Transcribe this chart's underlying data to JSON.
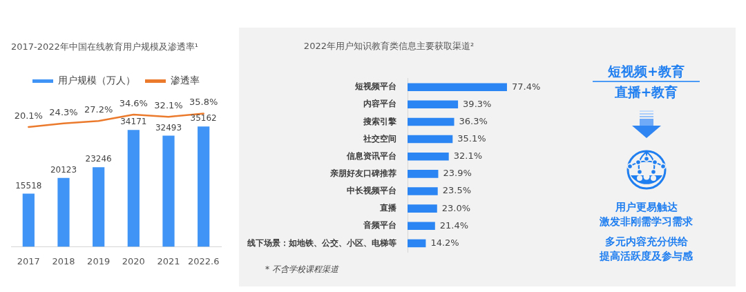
{
  "chart_data": [
    {
      "type": "bar",
      "title": "2017-2022年中国在线教育用户规模及渗透率¹",
      "categories": [
        "2017",
        "2018",
        "2019",
        "2020",
        "2021",
        "2022.6"
      ],
      "series": [
        {
          "name": "用户规模（万人）",
          "color": "#3f94f5",
          "values": [
            15518,
            20123,
            23246,
            34171,
            32493,
            35162
          ]
        },
        {
          "name": "渗透率",
          "type": "line",
          "axis": "y2",
          "color": "#eb7a2d",
          "values": [
            20.1,
            24.3,
            27.2,
            34.6,
            32.1,
            35.8
          ],
          "value_labels": [
            "20.1%",
            "24.3%",
            "27.2%",
            "34.6%",
            "32.1%",
            "35.8%"
          ]
        }
      ],
      "data_labels": true,
      "legend": "top",
      "grid": false,
      "marker": "none",
      "tick_labels": "x"
    },
    {
      "type": "bar",
      "orientation": "horizontal",
      "title": "2022年用户知识教育类信息主要获取渠道²",
      "categories": [
        "短视频平台",
        "内容平台",
        "搜索引擎",
        "社交空间",
        "信息资讯平台",
        "亲朋好友口碑推荐",
        "中长视频平台",
        "直播",
        "音频平台",
        "线下场景：如地铁、公交、小区、电梯等"
      ],
      "values": [
        77.4,
        39.3,
        36.3,
        35.1,
        32.1,
        23.9,
        23.5,
        23.0,
        21.4,
        14.2
      ],
      "color": "#2b86f4",
      "value_labels": [
        "77.4%",
        "39.3%",
        "36.3%",
        "35.1%",
        "32.1%",
        "23.9%",
        "23.5%",
        "23.0%",
        "21.4%",
        "14.2%"
      ],
      "annotations": [
        "* 不含学校课程渠道"
      ],
      "grid": false,
      "tick_labels": "y"
    },
    {
      "type": "other",
      "annotations": [
        "短视频+教育",
        "直播+教育",
        "用户更易触达",
        "激发非刚需学习需求",
        "多元内容充分供给",
        "提高活跃度及参与感"
      ]
    }
  ]
}
